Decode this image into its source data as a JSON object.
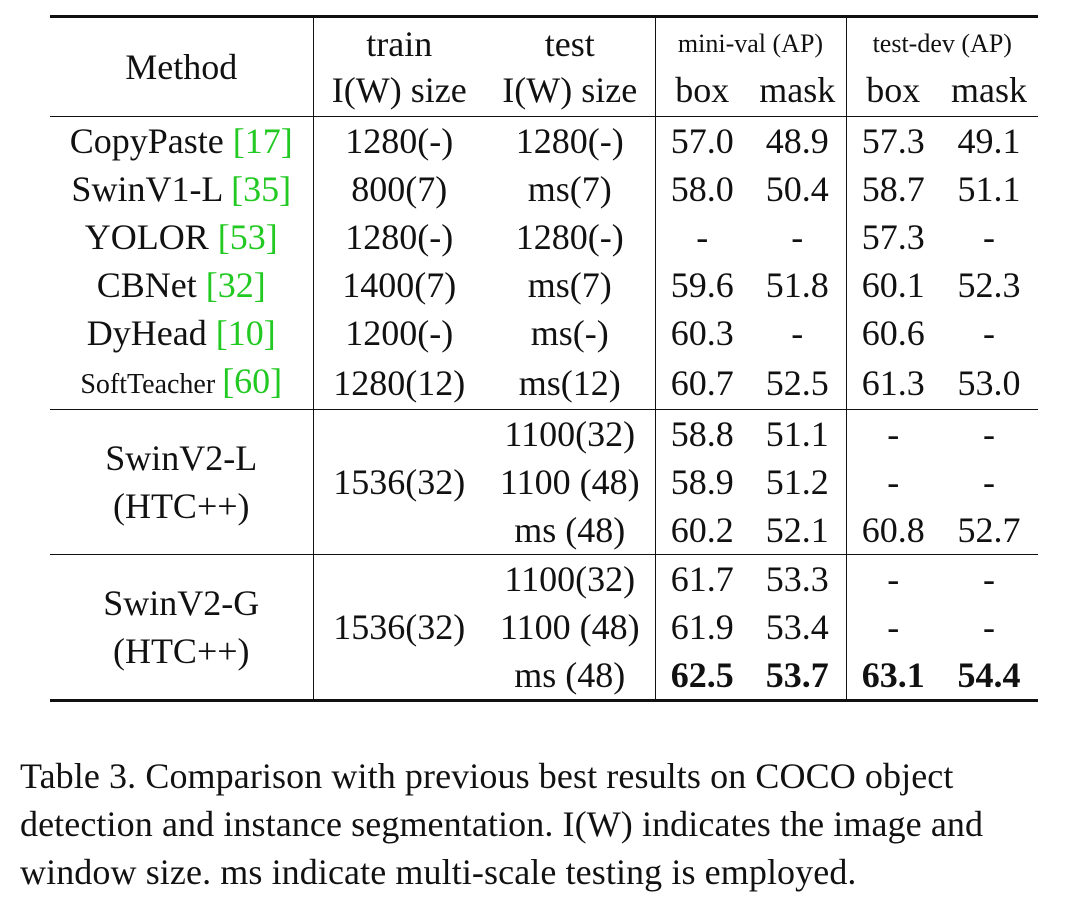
{
  "table": {
    "headers": {
      "method": "Method",
      "train_top": "train",
      "train_bottom": "I(W) size",
      "test_top": "test",
      "test_bottom": "I(W) size",
      "minival": "mini-val (AP)",
      "testdev": "test-dev (AP)",
      "box": "box",
      "mask": "mask"
    },
    "rows": [
      {
        "name": "CopyPaste ",
        "ref": "[17]",
        "train": "1280(-)",
        "test": "1280(-)",
        "mv_box": "57.0",
        "mv_mask": "48.9",
        "td_box": "57.3",
        "td_mask": "49.1"
      },
      {
        "name": "SwinV1-L ",
        "ref": "[35]",
        "train": "800(7)",
        "test": "ms(7)",
        "mv_box": "58.0",
        "mv_mask": "50.4",
        "td_box": "58.7",
        "td_mask": "51.1"
      },
      {
        "name": "YOLOR ",
        "ref": "[53]",
        "train": "1280(-)",
        "test": "1280(-)",
        "mv_box": "-",
        "mv_mask": "-",
        "td_box": "57.3",
        "td_mask": "-"
      },
      {
        "name": "CBNet ",
        "ref": "[32]",
        "train": "1400(7)",
        "test": "ms(7)",
        "mv_box": "59.6",
        "mv_mask": "51.8",
        "td_box": "60.1",
        "td_mask": "52.3"
      },
      {
        "name": "DyHead ",
        "ref": "[10]",
        "train": "1200(-)",
        "test": "ms(-)",
        "mv_box": "60.3",
        "mv_mask": "-",
        "td_box": "60.6",
        "td_mask": "-"
      },
      {
        "name": "SoftTeacher ",
        "ref": "[60]",
        "train": "1280(12)",
        "test": "ms(12)",
        "mv_box": "60.7",
        "mv_mask": "52.5",
        "td_box": "61.3",
        "td_mask": "53.0"
      }
    ],
    "groups": [
      {
        "name_line1": "SwinV2-L",
        "name_line2": "(HTC++)",
        "train": "1536(32)",
        "rows": [
          {
            "test": "1100(32)",
            "mv_box": "58.8",
            "mv_mask": "51.1",
            "td_box": "-",
            "td_mask": "-"
          },
          {
            "test": "1100 (48)",
            "mv_box": "58.9",
            "mv_mask": "51.2",
            "td_box": "-",
            "td_mask": "-"
          },
          {
            "test": "ms (48)",
            "mv_box": "60.2",
            "mv_mask": "52.1",
            "td_box": "60.8",
            "td_mask": "52.7"
          }
        ]
      },
      {
        "name_line1": "SwinV2-G",
        "name_line2": "(HTC++)",
        "train": "1536(32)",
        "rows": [
          {
            "test": "1100(32)",
            "mv_box": "61.7",
            "mv_mask": "53.3",
            "td_box": "-",
            "td_mask": "-"
          },
          {
            "test": "1100 (48)",
            "mv_box": "61.9",
            "mv_mask": "53.4",
            "td_box": "-",
            "td_mask": "-"
          },
          {
            "test": "ms (48)",
            "mv_box": "62.5",
            "mv_mask": "53.7",
            "td_box": "63.1",
            "td_mask": "54.4"
          }
        ]
      }
    ]
  },
  "caption": {
    "line1": "Table 3.  Comparison with previous best results on COCO object",
    "line2": "detection and instance segmentation. I(W) indicates the image and",
    "line3": "window size. ms indicate multi-scale testing is employed."
  },
  "colors": {
    "citation": "#22c922",
    "text": "#111111"
  }
}
